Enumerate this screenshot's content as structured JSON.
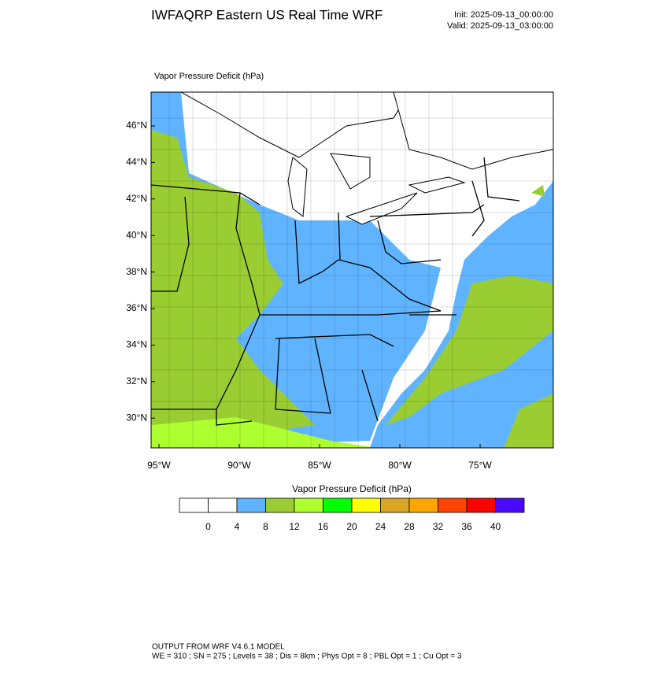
{
  "header": {
    "title": "IWFAQRP Eastern US Real Time WRF",
    "init": "Init: 2025-09-13_00:00:00",
    "valid": "Valid: 2025-09-13_03:00:00"
  },
  "map": {
    "label": "Vapor Pressure Deficit   (hPa)",
    "lat_labels": [
      "46°N",
      "44°N",
      "42°N",
      "40°N",
      "38°N",
      "36°N",
      "34°N",
      "32°N",
      "30°N"
    ],
    "lon_labels": [
      "95°W",
      "90°W",
      "85°W",
      "80°W",
      "75°W"
    ]
  },
  "colorbar": {
    "title": "Vapor Pressure Deficit  (hPa)",
    "colors": [
      "#ffffff",
      "#ffffff",
      "#60b4ff",
      "#9acd32",
      "#adff2f",
      "#00ff00",
      "#ffff00",
      "#daa520",
      "#ffa500",
      "#ff4500",
      "#ff0000",
      "#4b0aff"
    ],
    "labels": [
      "0",
      "4",
      "8",
      "12",
      "16",
      "20",
      "24",
      "28",
      "32",
      "36",
      "40"
    ]
  },
  "footer": {
    "line1": "OUTPUT FROM WRF V4.6.1 MODEL",
    "line2": "WE = 310 ; SN = 275 ; Levels = 38 ; Dis = 8km ; Phys Opt = 8 ; PBL Opt = 1 ; Cu Opt = 3"
  }
}
